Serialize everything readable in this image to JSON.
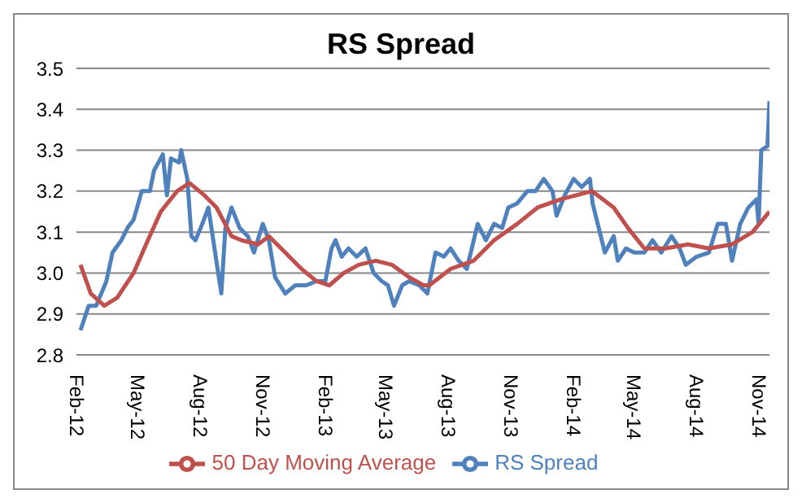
{
  "chart_data": {
    "type": "line",
    "title": "RS Spread",
    "xlim": [
      "2012-02-01",
      "2014-11-16"
    ],
    "xticks": [
      {
        "value": "2012-02-01",
        "label": "Feb-12"
      },
      {
        "value": "2012-05-01",
        "label": "May-12"
      },
      {
        "value": "2012-08-01",
        "label": "Aug-12"
      },
      {
        "value": "2012-11-01",
        "label": "Nov-12"
      },
      {
        "value": "2013-02-01",
        "label": "Feb-13"
      },
      {
        "value": "2013-05-01",
        "label": "May-13"
      },
      {
        "value": "2013-08-01",
        "label": "Aug-13"
      },
      {
        "value": "2013-11-01",
        "label": "Nov-13"
      },
      {
        "value": "2014-02-01",
        "label": "Feb-14"
      },
      {
        "value": "2014-05-01",
        "label": "May-14"
      },
      {
        "value": "2014-08-01",
        "label": "Aug-14"
      },
      {
        "value": "2014-11-01",
        "label": "Nov-14"
      }
    ],
    "ylim": [
      2.8,
      3.5
    ],
    "yticks": [
      2.8,
      2.9,
      {
        "value": 3.0,
        "label": "3.0"
      },
      3.1,
      3.2,
      3.3,
      3.4,
      3.5
    ],
    "grid": "y",
    "legend": "bottom",
    "series": [
      {
        "name": "RS Spread",
        "color": "#4f81bd",
        "x": [
          "2012-02-07",
          "2012-02-19",
          "2012-03-01",
          "2012-03-16",
          "2012-03-25",
          "2012-04-07",
          "2012-04-16",
          "2012-04-25",
          "2012-05-07",
          "2012-05-19",
          "2012-05-25",
          "2012-06-07",
          "2012-06-13",
          "2012-06-19",
          "2012-07-01",
          "2012-07-04",
          "2012-07-13",
          "2012-07-19",
          "2012-07-25",
          "2012-08-04",
          "2012-08-13",
          "2012-08-22",
          "2012-09-01",
          "2012-09-07",
          "2012-09-16",
          "2012-09-28",
          "2012-10-10",
          "2012-10-19",
          "2012-11-01",
          "2012-11-10",
          "2012-11-19",
          "2012-12-04",
          "2012-12-19",
          "2013-01-04",
          "2013-01-19",
          "2013-02-01",
          "2013-02-10",
          "2013-02-16",
          "2013-02-25",
          "2013-03-07",
          "2013-03-19",
          "2013-04-01",
          "2013-04-13",
          "2013-04-25",
          "2013-05-04",
          "2013-05-13",
          "2013-05-25",
          "2013-06-04",
          "2013-06-19",
          "2013-07-01",
          "2013-07-13",
          "2013-07-25",
          "2013-08-04",
          "2013-08-16",
          "2013-08-28",
          "2013-09-13",
          "2013-09-25",
          "2013-10-07",
          "2013-10-19",
          "2013-10-28",
          "2013-11-10",
          "2013-11-25",
          "2013-12-07",
          "2013-12-19",
          "2014-01-01",
          "2014-01-07",
          "2014-01-19",
          "2014-02-01",
          "2014-02-13",
          "2014-02-25",
          "2014-03-01",
          "2014-03-10",
          "2014-03-19",
          "2014-04-01",
          "2014-04-07",
          "2014-04-19",
          "2014-05-01",
          "2014-05-16",
          "2014-05-28",
          "2014-06-10",
          "2014-06-25",
          "2014-07-07",
          "2014-07-16",
          "2014-08-01",
          "2014-08-19",
          "2014-09-01",
          "2014-09-13",
          "2014-09-22",
          "2014-10-04",
          "2014-10-16",
          "2014-10-28",
          "2014-10-31",
          "2014-11-04",
          "2014-11-13",
          "2014-11-16"
        ],
        "values": [
          2.86,
          2.92,
          2.92,
          2.98,
          3.05,
          3.08,
          3.11,
          3.13,
          3.2,
          3.2,
          3.25,
          3.29,
          3.19,
          3.28,
          3.27,
          3.3,
          3.23,
          3.09,
          3.08,
          3.12,
          3.16,
          3.06,
          2.95,
          3.11,
          3.16,
          3.11,
          3.09,
          3.05,
          3.12,
          3.08,
          2.99,
          2.95,
          2.97,
          2.97,
          2.98,
          2.98,
          3.06,
          3.08,
          3.04,
          3.06,
          3.04,
          3.06,
          3.0,
          2.98,
          2.97,
          2.92,
          2.97,
          2.98,
          2.97,
          2.95,
          3.05,
          3.04,
          3.06,
          3.03,
          3.01,
          3.12,
          3.08,
          3.12,
          3.11,
          3.16,
          3.17,
          3.2,
          3.2,
          3.23,
          3.2,
          3.14,
          3.19,
          3.23,
          3.21,
          3.23,
          3.17,
          3.11,
          3.05,
          3.09,
          3.03,
          3.06,
          3.05,
          3.05,
          3.08,
          3.05,
          3.09,
          3.06,
          3.02,
          3.04,
          3.05,
          3.12,
          3.12,
          3.03,
          3.12,
          3.16,
          3.18,
          3.12,
          3.3,
          3.31,
          3.42
        ]
      },
      {
        "name": "50 Day Moving Average",
        "color": "#c0504d",
        "x": [
          "2012-02-07",
          "2012-02-22",
          "2012-03-13",
          "2012-04-01",
          "2012-04-25",
          "2012-05-16",
          "2012-06-04",
          "2012-06-28",
          "2012-07-16",
          "2012-08-07",
          "2012-08-25",
          "2012-09-16",
          "2012-10-01",
          "2012-10-25",
          "2012-11-10",
          "2012-12-04",
          "2012-12-28",
          "2013-01-19",
          "2013-02-07",
          "2013-02-28",
          "2013-03-22",
          "2013-04-16",
          "2013-05-10",
          "2013-06-04",
          "2013-06-25",
          "2013-07-04",
          "2013-08-04",
          "2013-09-07",
          "2013-10-07",
          "2013-11-10",
          "2013-12-10",
          "2014-01-13",
          "2014-02-28",
          "2014-04-01",
          "2014-04-22",
          "2014-05-16",
          "2014-06-16",
          "2014-07-19",
          "2014-08-19",
          "2014-09-22",
          "2014-10-22",
          "2014-11-16"
        ],
        "values": [
          3.02,
          2.95,
          2.92,
          2.94,
          3.0,
          3.08,
          3.15,
          3.2,
          3.22,
          3.19,
          3.16,
          3.09,
          3.08,
          3.07,
          3.09,
          3.05,
          3.01,
          2.98,
          2.97,
          3.0,
          3.02,
          3.03,
          3.02,
          2.99,
          2.97,
          2.97,
          3.01,
          3.03,
          3.08,
          3.12,
          3.16,
          3.18,
          3.2,
          3.16,
          3.11,
          3.06,
          3.06,
          3.07,
          3.06,
          3.07,
          3.1,
          3.15
        ]
      }
    ]
  }
}
